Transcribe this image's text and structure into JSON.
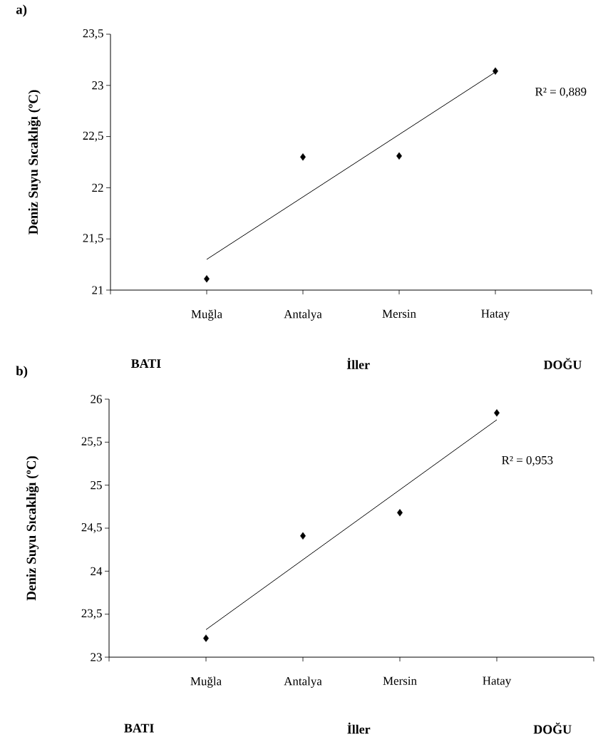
{
  "chart_data": [
    {
      "type": "scatter",
      "title": "a)",
      "ylabel": "Deniz Suyu Sıcaklığı (ºC)",
      "xlabel": "İller",
      "categories": [
        "Muğla",
        "Antalya",
        "Mersin",
        "Hatay"
      ],
      "ylim": [
        21,
        23.5
      ],
      "yticks": [
        21,
        {
          "value": 21.5,
          "label": "21,5"
        },
        22,
        {
          "value": 22.5,
          "label": "22,5"
        },
        23,
        {
          "value": 23.5,
          "label": "23,5"
        }
      ],
      "series": [
        {
          "type": "scatter",
          "color": "#000000",
          "marker": "diamond",
          "values": [
            21.11,
            22.3,
            22.31,
            23.14
          ]
        },
        {
          "type": "line",
          "color": "#000000",
          "x": [
            "Muğla",
            "Hatay"
          ],
          "values": [
            21.3,
            23.13
          ]
        }
      ],
      "annotations": [
        "R² = 0,889",
        "BATI",
        "DOĞU"
      ]
    },
    {
      "type": "scatter",
      "title": "b)",
      "ylabel": "Deniz Suyu Sıcaklığı (ºC)",
      "xlabel": "İller",
      "categories": [
        "Muğla",
        "Antalya",
        "Mersin",
        "Hatay"
      ],
      "ylim": [
        23,
        26
      ],
      "yticks": [
        23,
        {
          "value": 23.5,
          "label": "23,5"
        },
        24,
        {
          "value": 24.5,
          "label": "24,5"
        },
        25,
        {
          "value": 25.5,
          "label": "25,5"
        },
        26
      ],
      "series": [
        {
          "type": "scatter",
          "color": "#000000",
          "marker": "diamond",
          "values": [
            23.22,
            24.41,
            24.68,
            25.84
          ]
        },
        {
          "type": "line",
          "color": "#000000",
          "x": [
            "Muğla",
            "Hatay"
          ],
          "values": [
            23.32,
            25.76
          ]
        }
      ],
      "annotations": [
        "R² = 0,953",
        "BATI",
        "DOĞU"
      ]
    }
  ]
}
